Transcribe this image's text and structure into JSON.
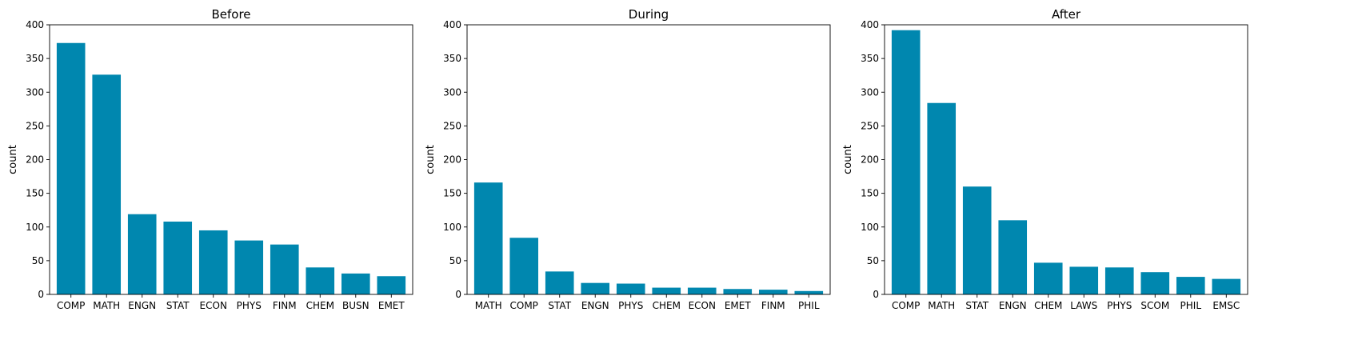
{
  "chart_data": [
    {
      "type": "bar",
      "title": "Before",
      "xlabel": "",
      "ylabel": "count",
      "ylim": [
        0,
        400
      ],
      "yticks": [
        0,
        50,
        100,
        150,
        200,
        250,
        300,
        350,
        400
      ],
      "categories": [
        "COMP",
        "MATH",
        "ENGN",
        "STAT",
        "ECON",
        "PHYS",
        "FINM",
        "CHEM",
        "BUSN",
        "EMET"
      ],
      "values": [
        373,
        326,
        119,
        108,
        95,
        80,
        74,
        40,
        31,
        27
      ],
      "color": "#0087AF",
      "grid": false
    },
    {
      "type": "bar",
      "title": "During",
      "xlabel": "",
      "ylabel": "count",
      "ylim": [
        0,
        400
      ],
      "yticks": [
        0,
        50,
        100,
        150,
        200,
        250,
        300,
        350,
        400
      ],
      "categories": [
        "MATH",
        "COMP",
        "STAT",
        "ENGN",
        "PHYS",
        "CHEM",
        "ECON",
        "EMET",
        "FINM",
        "PHIL"
      ],
      "values": [
        166,
        84,
        34,
        17,
        16,
        10,
        10,
        8,
        7,
        5
      ],
      "color": "#0087AF",
      "grid": false
    },
    {
      "type": "bar",
      "title": "After",
      "xlabel": "",
      "ylabel": "count",
      "ylim": [
        0,
        400
      ],
      "yticks": [
        0,
        50,
        100,
        150,
        200,
        250,
        300,
        350,
        400
      ],
      "categories": [
        "COMP",
        "MATH",
        "STAT",
        "ENGN",
        "CHEM",
        "LAWS",
        "PHYS",
        "SCOM",
        "PHIL",
        "EMSC"
      ],
      "values": [
        392,
        284,
        160,
        110,
        47,
        41,
        40,
        33,
        26,
        23
      ],
      "color": "#0087AF",
      "grid": false
    }
  ]
}
